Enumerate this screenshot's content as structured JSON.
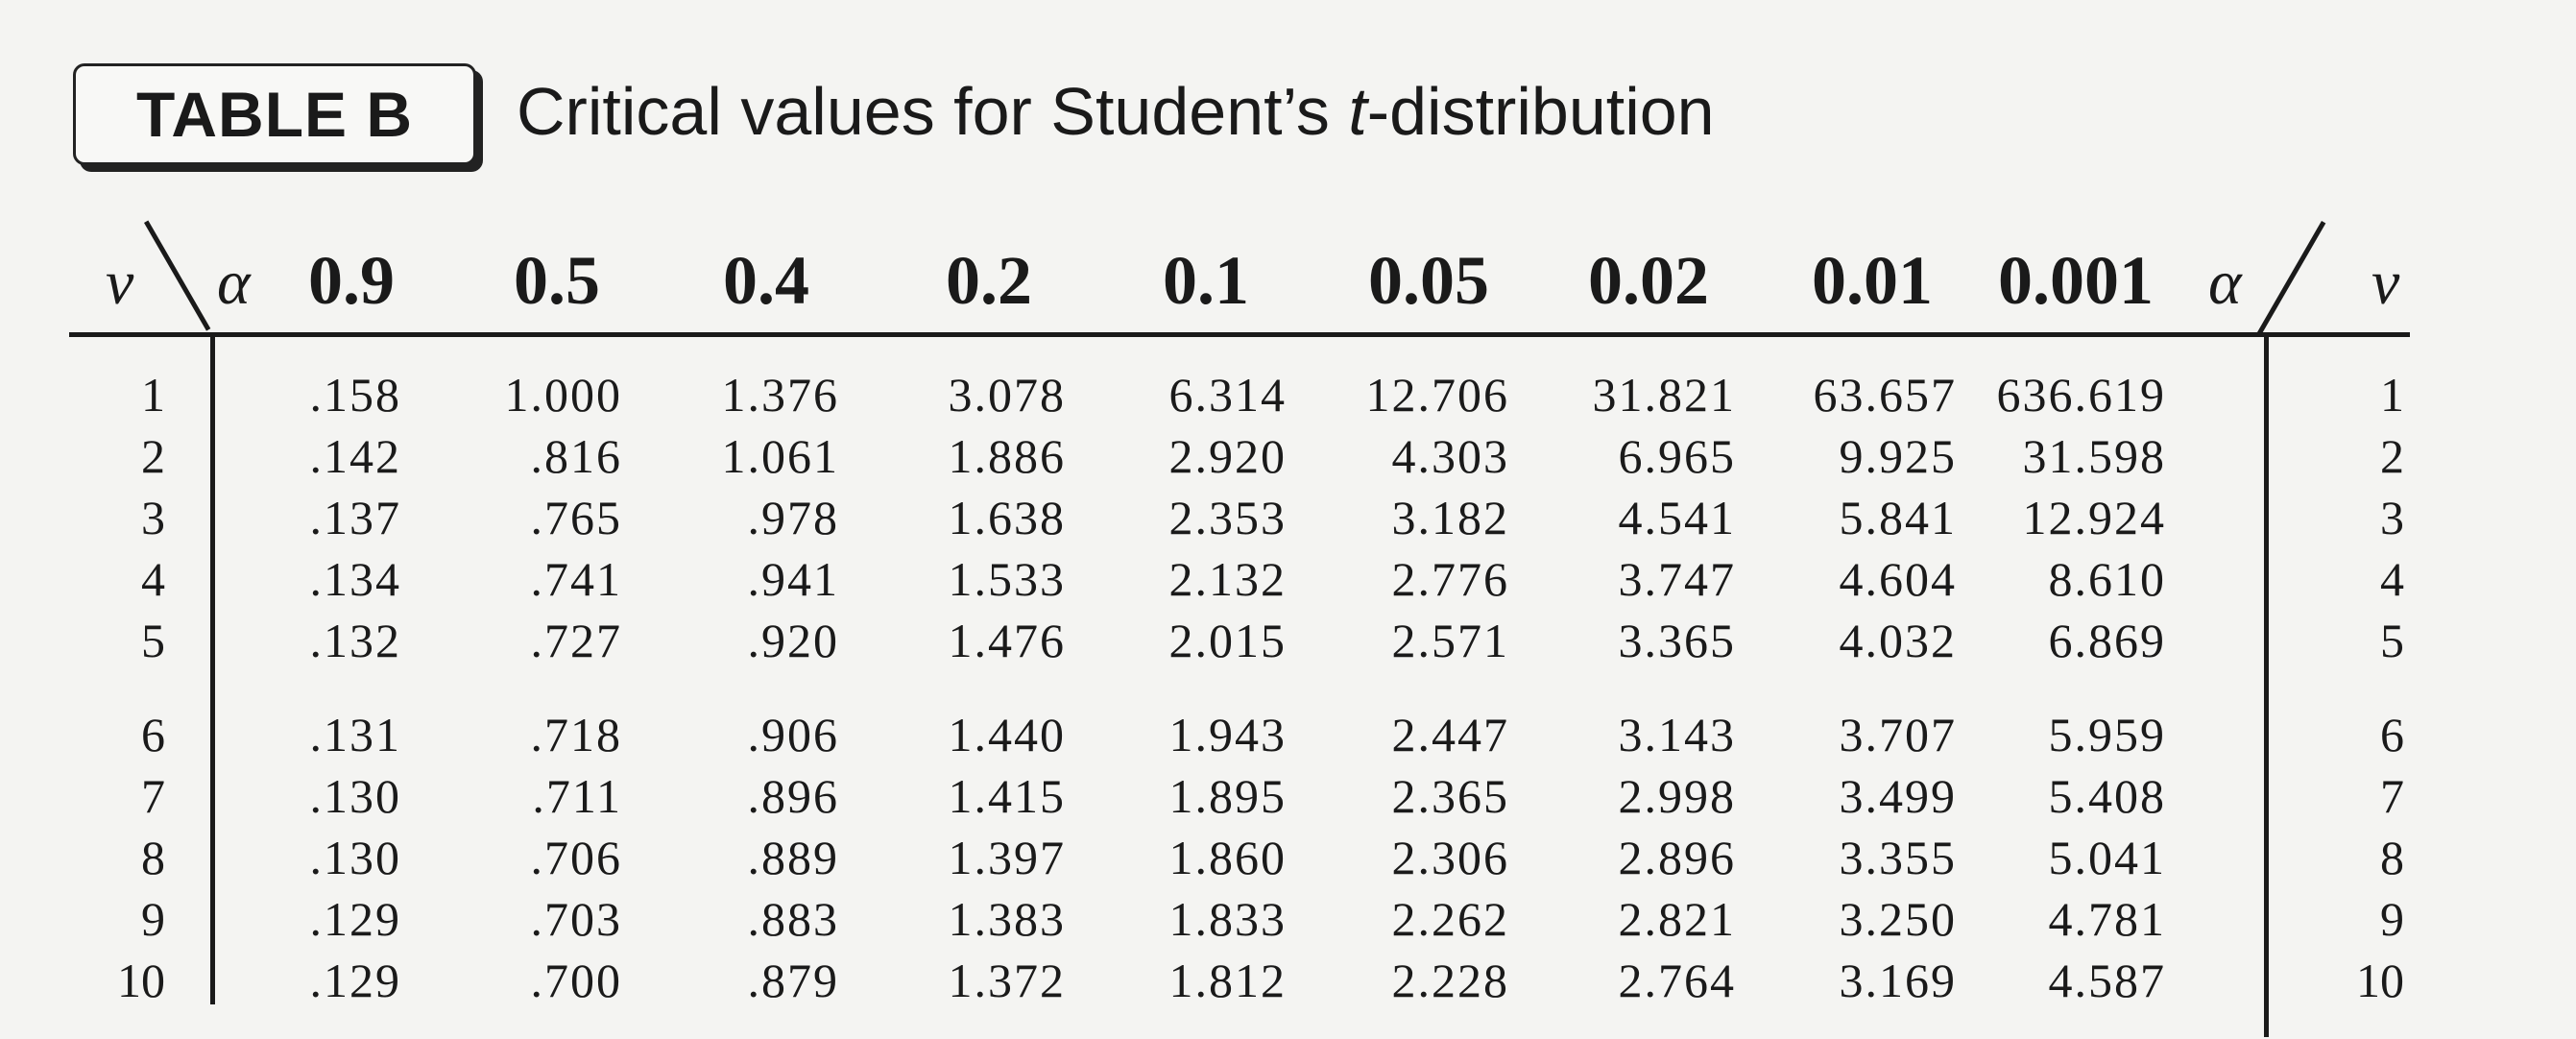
{
  "table_label": "TABLE B",
  "caption": {
    "prefix": "Critical values for Student’s ",
    "italic": "t",
    "suffix": "-distribution"
  },
  "row_symbol": "ν",
  "col_symbol": "α",
  "alpha_headers": [
    "0.9",
    "0.5",
    "0.4",
    "0.2",
    "0.1",
    "0.05",
    "0.02",
    "0.01",
    "0.001"
  ],
  "rows": [
    {
      "nu": "1",
      "values": [
        ".158",
        "1.000",
        "1.376",
        "3.078",
        "6.314",
        "12.706",
        "31.821",
        "63.657",
        "636.619"
      ]
    },
    {
      "nu": "2",
      "values": [
        ".142",
        ".816",
        "1.061",
        "1.886",
        "2.920",
        "4.303",
        "6.965",
        "9.925",
        "31.598"
      ]
    },
    {
      "nu": "3",
      "values": [
        ".137",
        ".765",
        ".978",
        "1.638",
        "2.353",
        "3.182",
        "4.541",
        "5.841",
        "12.924"
      ]
    },
    {
      "nu": "4",
      "values": [
        ".134",
        ".741",
        ".941",
        "1.533",
        "2.132",
        "2.776",
        "3.747",
        "4.604",
        "8.610"
      ]
    },
    {
      "nu": "5",
      "values": [
        ".132",
        ".727",
        ".920",
        "1.476",
        "2.015",
        "2.571",
        "3.365",
        "4.032",
        "6.869"
      ]
    },
    {
      "nu": "6",
      "values": [
        ".131",
        ".718",
        ".906",
        "1.440",
        "1.943",
        "2.447",
        "3.143",
        "3.707",
        "5.959"
      ]
    },
    {
      "nu": "7",
      "values": [
        ".130",
        ".711",
        ".896",
        "1.415",
        "1.895",
        "2.365",
        "2.998",
        "3.499",
        "5.408"
      ]
    },
    {
      "nu": "8",
      "values": [
        ".130",
        ".706",
        ".889",
        "1.397",
        "1.860",
        "2.306",
        "2.896",
        "3.355",
        "5.041"
      ]
    },
    {
      "nu": "9",
      "values": [
        ".129",
        ".703",
        ".883",
        "1.383",
        "1.833",
        "2.262",
        "2.821",
        "3.250",
        "4.781"
      ]
    },
    {
      "nu": "10",
      "values": [
        ".129",
        ".700",
        ".879",
        "1.372",
        "1.812",
        "2.228",
        "2.764",
        "3.169",
        "4.587"
      ]
    }
  ]
}
